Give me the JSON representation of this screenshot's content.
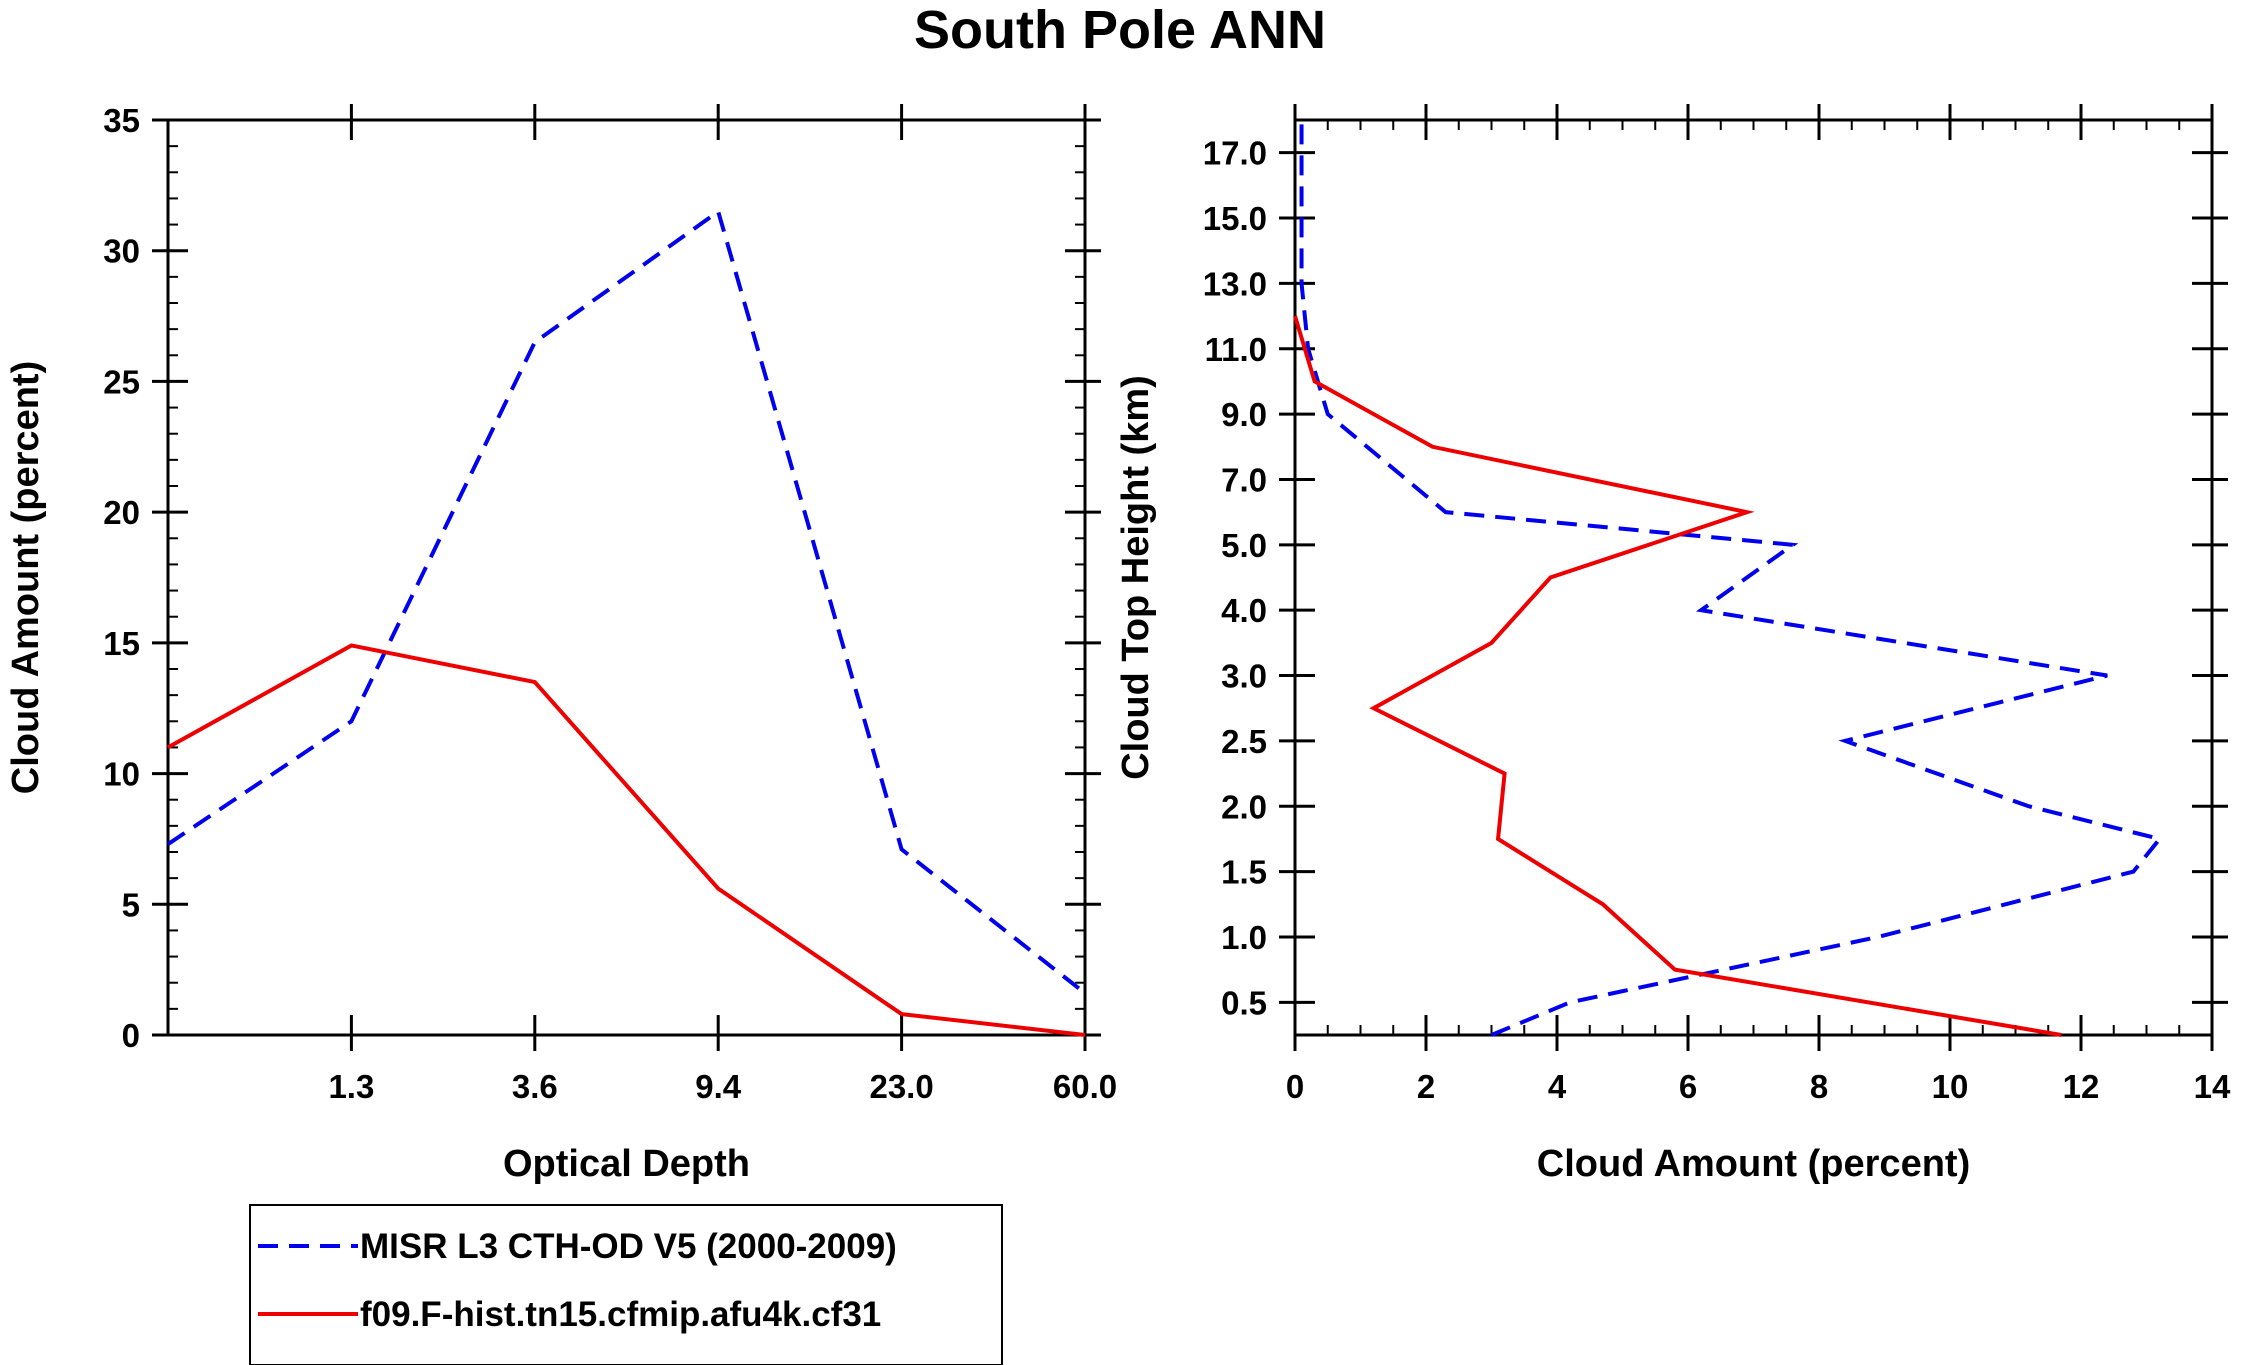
{
  "title": "South Pole ANN",
  "colors": {
    "obs": "#0000ee",
    "model": "#ee0000",
    "axis": "#000000"
  },
  "legend": {
    "entries": [
      {
        "label": "MISR L3 CTH-OD V5 (2000-2009)",
        "style": "dashed",
        "color": "#0000ee"
      },
      {
        "label": "f09.F-hist.tn15.cfmip.afu4k.cf31",
        "style": "solid",
        "color": "#ee0000"
      }
    ]
  },
  "chart_data": [
    {
      "type": "line",
      "xlabel": "Optical Depth",
      "ylabel": "Cloud Amount (percent)",
      "x_index_range": [
        0,
        10
      ],
      "ylim": [
        0,
        35
      ],
      "x_tick_positions": [
        2,
        4,
        6,
        8,
        10
      ],
      "x_tick_labels": [
        "1.3",
        "3.6",
        "9.4",
        "23.0",
        "60.0"
      ],
      "y_ticks": [
        0,
        5,
        10,
        15,
        20,
        25,
        30,
        35
      ],
      "y_tick_labels": [
        "0",
        "5",
        "10",
        "15",
        "20",
        "25",
        "30",
        "35"
      ],
      "x": [
        0,
        2,
        4,
        6,
        8,
        10
      ],
      "series": [
        {
          "name": "MISR L3 CTH-OD V5 (2000-2009)",
          "values": [
            7.3,
            12.0,
            26.5,
            31.5,
            7.1,
            1.6
          ]
        },
        {
          "name": "f09.F-hist.tn15.cfmip.afu4k.cf31",
          "values": [
            11.0,
            14.9,
            13.5,
            5.6,
            0.8,
            0.0
          ]
        }
      ]
    },
    {
      "type": "line",
      "xlabel": "Cloud Amount (percent)",
      "ylabel": "Cloud Top Height (km)",
      "xlim": [
        0,
        14
      ],
      "x_ticks": [
        0,
        2,
        4,
        6,
        8,
        10,
        12,
        14
      ],
      "x_tick_labels": [
        "0",
        "2",
        "4",
        "6",
        "8",
        "10",
        "12",
        "14"
      ],
      "level_range": [
        0,
        14
      ],
      "y_tick_positions": [
        0.5,
        1.5,
        2.5,
        3.5,
        4.5,
        5.5,
        6.5,
        7.5,
        8.5,
        9.5,
        10.5,
        11.5,
        12.5,
        13.5
      ],
      "y_tick_labels": [
        "0.5",
        "1.0",
        "1.5",
        "2.0",
        "2.5",
        "3.0",
        "4.0",
        "5.0",
        "7.0",
        "9.0",
        "11.0",
        "13.0",
        "15.0",
        "17.0"
      ],
      "series": [
        {
          "name": "MISR L3 CTH-OD V5 (2000-2009)",
          "values": [
            3.0,
            4.2,
            8.9,
            12.8,
            13.2,
            11.2,
            8.4,
            12.4,
            6.2,
            7.6,
            2.3,
            1.7,
            0.5,
            0.2,
            0.1,
            0.1,
            0.1
          ],
          "levels": [
            0,
            0.5,
            1.5,
            2.5,
            3.0,
            3.5,
            4.5,
            5.5,
            6.5,
            7.5,
            8.0,
            8.5,
            9.5,
            10.5,
            11.5,
            13.5,
            14.0
          ]
        },
        {
          "name": "f09.F-hist.tn15.cfmip.afu4k.cf31",
          "values": [
            11.7,
            5.8,
            4.7,
            3.1,
            3.2,
            1.2,
            3.0,
            3.9,
            6.9,
            2.1,
            0.3,
            0.0
          ],
          "levels": [
            0,
            1.0,
            2.0,
            3.0,
            4.0,
            5.0,
            6.0,
            7.0,
            8.0,
            9.0,
            10.0,
            11.0
          ]
        }
      ]
    }
  ]
}
